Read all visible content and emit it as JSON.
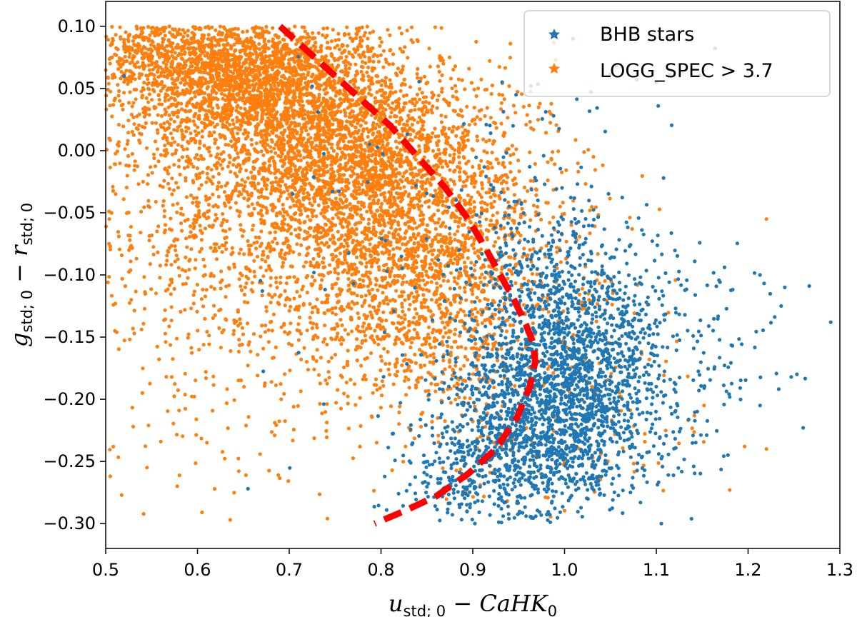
{
  "chart_data": {
    "type": "scatter",
    "title": "",
    "xlabel": {
      "base": "u",
      "sub": "std; 0",
      "rest": " − CaHK",
      "rest_sub": "0"
    },
    "ylabel": {
      "base": "g",
      "sub": "std; 0",
      "rest": " − r",
      "rest_sub": "std; 0"
    },
    "xlim": [
      0.5,
      1.3
    ],
    "ylim": [
      -0.32,
      0.12
    ],
    "xticks": [
      0.5,
      0.6,
      0.7,
      0.8,
      0.9,
      1.0,
      1.1,
      1.2,
      1.3
    ],
    "xtick_labels": [
      "0.5",
      "0.6",
      "0.7",
      "0.8",
      "0.9",
      "1.0",
      "1.1",
      "1.2",
      "1.3"
    ],
    "yticks": [
      -0.3,
      -0.25,
      -0.2,
      -0.15,
      -0.1,
      -0.05,
      0.0,
      0.05,
      0.1
    ],
    "ytick_labels": [
      "−0.30",
      "−0.25",
      "−0.20",
      "−0.15",
      "−0.10",
      "−0.05",
      "0.00",
      "0.05",
      "0.10"
    ],
    "legend_position": "top-right",
    "series": [
      {
        "name": "BHB stars",
        "color": "#1f77b4",
        "marker": "point",
        "clusters": [
          {
            "cx": 1.01,
            "cy": -0.19,
            "sx": 0.055,
            "sy": 0.045,
            "n": 1500
          },
          {
            "cx": 0.95,
            "cy": -0.23,
            "sx": 0.045,
            "sy": 0.035,
            "n": 650
          },
          {
            "cx": 0.99,
            "cy": -0.11,
            "sx": 0.05,
            "sy": 0.04,
            "n": 450
          },
          {
            "cx": 0.88,
            "cy": -0.265,
            "sx": 0.035,
            "sy": 0.018,
            "n": 160
          },
          {
            "cx": 1.13,
            "cy": -0.17,
            "sx": 0.06,
            "sy": 0.05,
            "n": 160
          },
          {
            "cx": 0.85,
            "cy": -0.09,
            "sx": 0.1,
            "sy": 0.07,
            "n": 80
          },
          {
            "cx": 1.02,
            "cy": 0.02,
            "sx": 0.08,
            "sy": 0.04,
            "n": 30
          }
        ],
        "points": [
          [
            1.29,
            -0.138
          ],
          [
            1.26,
            -0.223
          ],
          [
            1.247,
            -0.182
          ],
          [
            1.24,
            -0.11
          ],
          [
            1.213,
            -0.1
          ],
          [
            1.1,
            0.055
          ],
          [
            0.655,
            -0.272
          ],
          [
            0.52,
            0.06
          ]
        ]
      },
      {
        "name": "LOGG_SPEC > 3.7",
        "color": "#ff7f0e",
        "marker": "point",
        "clusters": [
          {
            "cx": 0.66,
            "cy": 0.06,
            "sx": 0.07,
            "sy": 0.03,
            "n": 2200
          },
          {
            "cx": 0.76,
            "cy": 0.0,
            "sx": 0.07,
            "sy": 0.04,
            "n": 1800
          },
          {
            "cx": 0.8,
            "cy": -0.06,
            "sx": 0.08,
            "sy": 0.05,
            "n": 1400
          },
          {
            "cx": 0.85,
            "cy": -0.13,
            "sx": 0.07,
            "sy": 0.05,
            "n": 900
          },
          {
            "cx": 0.6,
            "cy": -0.02,
            "sx": 0.07,
            "sy": 0.07,
            "n": 700
          },
          {
            "cx": 0.9,
            "cy": -0.03,
            "sx": 0.06,
            "sy": 0.05,
            "n": 350
          },
          {
            "cx": 0.65,
            "cy": -0.15,
            "sx": 0.1,
            "sy": 0.07,
            "n": 250
          },
          {
            "cx": 0.55,
            "cy": 0.08,
            "sx": 0.04,
            "sy": 0.02,
            "n": 400
          },
          {
            "cx": 1.0,
            "cy": -0.18,
            "sx": 0.08,
            "sy": 0.06,
            "n": 150
          }
        ],
        "points": [
          [
            1.22,
            -0.055
          ],
          [
            1.22,
            -0.24
          ],
          [
            1.18,
            -0.273
          ],
          [
            0.505,
            -0.262
          ],
          [
            0.53,
            -0.222
          ],
          [
            0.545,
            -0.255
          ],
          [
            0.56,
            -0.234
          ],
          [
            0.605,
            -0.291
          ],
          [
            0.58,
            -0.209
          ],
          [
            0.51,
            -0.145
          ],
          [
            0.54,
            -0.195
          ],
          [
            0.505,
            -0.077
          ]
        ]
      },
      {
        "name": "selection-boundary",
        "color": "#ff0000",
        "type": "line",
        "dashed": true,
        "x": [
          0.69,
          0.72,
          0.75,
          0.78,
          0.81,
          0.84,
          0.87,
          0.895,
          0.915,
          0.93,
          0.945,
          0.958,
          0.966,
          0.968,
          0.962,
          0.948,
          0.925,
          0.895,
          0.86,
          0.825,
          0.793
        ],
        "y": [
          0.1,
          0.08,
          0.06,
          0.04,
          0.02,
          -0.005,
          -0.03,
          -0.055,
          -0.08,
          -0.1,
          -0.12,
          -0.14,
          -0.155,
          -0.17,
          -0.19,
          -0.215,
          -0.24,
          -0.26,
          -0.278,
          -0.29,
          -0.3
        ]
      }
    ],
    "legend": [
      {
        "label": "BHB stars",
        "color": "#1f77b4"
      },
      {
        "label": "LOGG_SPEC > 3.7",
        "color": "#ff7f0e"
      }
    ]
  }
}
